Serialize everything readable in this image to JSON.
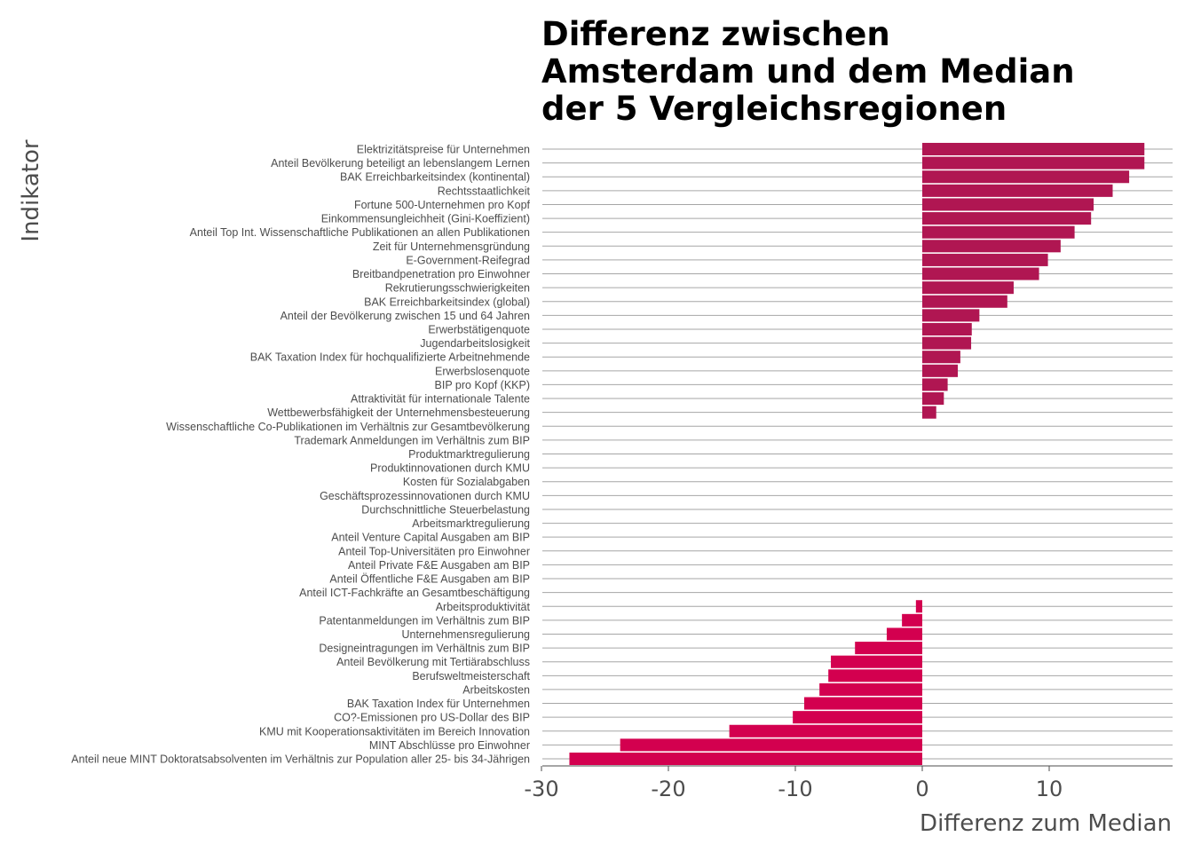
{
  "chart_data": {
    "type": "bar",
    "orientation": "horizontal",
    "title": [
      "Differenz zwischen",
      "Amsterdam und dem Median",
      "der 5 Vergleichsregionen"
    ],
    "xlabel": "Differenz zum Median",
    "ylabel": "Indikator",
    "xlim": [
      -30,
      19.5
    ],
    "xticks": [
      -30,
      -20,
      -10,
      0,
      10
    ],
    "xtick_labels": [
      "-30",
      "-20",
      "-10",
      "0",
      "10"
    ],
    "colors": {
      "positive": "#b01652",
      "negative": "#d3004f"
    },
    "categories": [
      "Elektrizitätspreise für Unternehmen",
      "Anteil Bevölkerung beteiligt an lebenslangem Lernen",
      "BAK Erreichbarkeitsindex (kontinental)",
      "Rechtsstaatlichkeit",
      "Fortune 500-Unternehmen pro Kopf",
      "Einkommensungleichheit (Gini-Koeffizient)",
      "Anteil Top Int. Wissenschaftliche Publikationen an allen Publikationen",
      "Zeit für Unternehmensgründung",
      "E-Government-Reifegrad",
      "Breitbandpenetration pro Einwohner",
      "Rekrutierungsschwierigkeiten",
      "BAK Erreichbarkeitsindex (global)",
      "Anteil der Bevölkerung zwischen 15 und 64 Jahren",
      "Erwerbstätigenquote",
      "Jugendarbeitslosigkeit",
      "BAK Taxation Index für hochqualifizierte Arbeitnehmende",
      "Erwerbslosenquote",
      "BIP pro Kopf (KKP)",
      "Attraktivität für internationale Talente",
      "Wettbewerbsfähigkeit der Unternehmensbesteuerung",
      "Wissenschaftliche Co-Publikationen im Verhältnis zur Gesamtbevölkerung",
      "Trademark Anmeldungen im Verhältnis zum BIP",
      "Produktmarktregulierung",
      "Produktinnovationen durch KMU",
      "Kosten für Sozialabgaben",
      "Geschäftsprozessinnovationen durch KMU",
      "Durchschnittliche Steuerbelastung",
      "Arbeitsmarktregulierung",
      "Anteil Venture Capital Ausgaben am BIP",
      "Anteil Top-Universitäten pro Einwohner",
      "Anteil Private F&E Ausgaben am BIP",
      "Anteil Öffentliche F&E Ausgaben am BIP",
      "Anteil ICT-Fachkräfte an Gesamtbeschäftigung",
      "Arbeitsproduktivität",
      "Patentanmeldungen im Verhältnis zum BIP",
      "Unternehmensregulierung",
      "Designeintragungen im Verhältnis zum BIP",
      "Anteil Bevölkerung mit Tertiärabschluss",
      "Berufsweltmeisterschaft",
      "Arbeitskosten",
      "BAK Taxation Index für Unternehmen",
      "CO?-Emissionen pro US-Dollar des BIP",
      "KMU mit Kooperationsaktivitäten im Bereich Innovation",
      "MINT Abschlüsse pro Einwohner",
      "Anteil neue MINT Doktoratsabsolventen im Verhältnis zur Population aller 25- bis 34-Jährigen"
    ],
    "values": [
      17.5,
      17.5,
      16.3,
      15.0,
      13.5,
      13.3,
      12.0,
      10.9,
      9.9,
      9.2,
      7.2,
      6.7,
      4.5,
      3.9,
      3.85,
      3.0,
      2.8,
      2.0,
      1.7,
      1.1,
      0,
      0,
      0,
      0,
      0,
      0,
      0,
      0,
      0,
      0,
      0,
      0,
      0,
      -0.5,
      -1.6,
      -2.8,
      -5.3,
      -7.2,
      -7.4,
      -8.1,
      -9.3,
      -10.2,
      -15.2,
      -23.8,
      -27.8
    ]
  }
}
